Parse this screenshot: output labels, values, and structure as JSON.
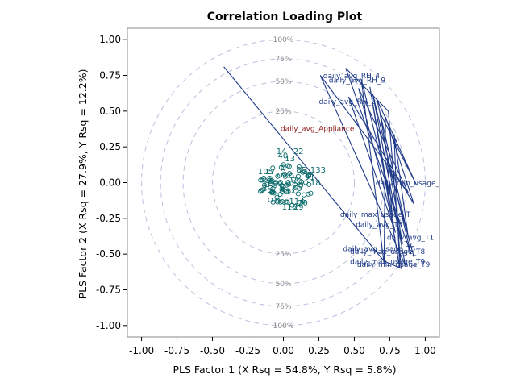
{
  "chart_data": {
    "type": "scatter",
    "title": "Correlation Loading Plot",
    "xlabel": "PLS Factor 1 (X Rsq = 54.8%, Y Rsq = 5.8%)",
    "ylabel": "PLS Factor 2 (X Rsq = 27.9%, Y Rsq = 12.2%)",
    "xlim": [
      -1.1,
      1.1
    ],
    "ylim": [
      -1.08,
      1.08
    ],
    "xticks": [
      "-1.00",
      "-0.75",
      "-0.50",
      "-0.25",
      "0.00",
      "0.25",
      "0.50",
      "0.75",
      "1.00"
    ],
    "yticks": [
      "1.00",
      "0.75",
      "0.50",
      "0.25",
      "0.00",
      "-0.25",
      "-0.50",
      "-0.75",
      "-1.00"
    ],
    "circles": [
      {
        "label": "100%",
        "radius": 1.0
      },
      {
        "label": "75%",
        "radius": 0.866
      },
      {
        "label": "50%",
        "radius": 0.7071
      },
      {
        "label": "25%",
        "radius": 0.5
      }
    ],
    "response": {
      "label": "daily_avg_Appliance",
      "x": -0.02,
      "y": 0.36
    },
    "predictor_path": [
      [
        -0.42,
        0.81
      ],
      [
        0.71,
        -0.55
      ],
      [
        0.83,
        -0.6
      ],
      [
        0.74,
        0.5
      ],
      [
        0.44,
        0.8
      ],
      [
        0.9,
        -0.5
      ],
      [
        0.63,
        0.62
      ],
      [
        0.86,
        -0.58
      ],
      [
        0.26,
        0.75
      ],
      [
        0.88,
        -0.07
      ],
      [
        0.53,
        0.66
      ],
      [
        0.79,
        -0.35
      ],
      [
        0.46,
        0.6
      ],
      [
        0.92,
        -0.15
      ],
      [
        0.72,
        0.46
      ],
      [
        0.71,
        -0.57
      ],
      [
        0.55,
        0.72
      ],
      [
        0.84,
        -0.43
      ],
      [
        0.68,
        0.49
      ],
      [
        0.94,
        -0.02
      ],
      [
        0.66,
        0.58
      ],
      [
        0.88,
        -0.38
      ],
      [
        0.78,
        0.34
      ],
      [
        0.82,
        -0.6
      ],
      [
        0.61,
        0.67
      ],
      [
        0.77,
        -0.25
      ],
      [
        0.73,
        0.17
      ],
      [
        0.92,
        -0.52
      ]
    ],
    "predictor_labels": [
      {
        "text": "daily_avg_RH_4",
        "x": 0.28,
        "y": 0.73
      },
      {
        "text": "daily_avg_RH_9",
        "x": 0.32,
        "y": 0.7
      },
      {
        "text": "daily_avg_RH_2",
        "x": 0.25,
        "y": 0.55
      },
      {
        "text": "daily_min_usage_",
        "x": 0.65,
        "y": -0.02
      },
      {
        "text": "daily_max_usage_T",
        "x": 0.4,
        "y": -0.24
      },
      {
        "text": "daily_avg_T6",
        "x": 0.51,
        "y": -0.31
      },
      {
        "text": "daily_avg_T1",
        "x": 0.73,
        "y": -0.4
      },
      {
        "text": "daily_avg_usage_T5",
        "x": 0.42,
        "y": -0.48
      },
      {
        "text": "daily_max_usage_T8",
        "x": 0.47,
        "y": -0.5
      },
      {
        "text": "daily_max_usage_T9",
        "x": 0.47,
        "y": -0.57
      },
      {
        "text": "daily_min_usage_T9",
        "x": 0.52,
        "y": -0.59
      }
    ],
    "observation_labels": [
      {
        "text": "14",
        "x": -0.05,
        "y": 0.2
      },
      {
        "text": "22",
        "x": 0.07,
        "y": 0.2
      },
      {
        "text": "40",
        "x": -0.04,
        "y": 0.17
      },
      {
        "text": "13",
        "x": 0.01,
        "y": 0.15
      },
      {
        "text": "85",
        "x": 0.09,
        "y": 0.07
      },
      {
        "text": "133",
        "x": 0.19,
        "y": 0.07
      },
      {
        "text": "105",
        "x": -0.18,
        "y": 0.06
      },
      {
        "text": "17",
        "x": -0.13,
        "y": 0.06
      },
      {
        "text": "91",
        "x": 0.15,
        "y": 0.02
      },
      {
        "text": "18",
        "x": 0.19,
        "y": -0.02
      },
      {
        "text": "25",
        "x": 0.07,
        "y": -0.04
      },
      {
        "text": "3",
        "x": -0.15,
        "y": -0.06
      },
      {
        "text": "51",
        "x": -0.02,
        "y": -0.08
      },
      {
        "text": "114",
        "x": 0.04,
        "y": -0.15
      },
      {
        "text": "20",
        "x": 0.1,
        "y": -0.16
      },
      {
        "text": "118",
        "x": -0.01,
        "y": -0.19
      },
      {
        "text": "29",
        "x": 0.07,
        "y": -0.19
      }
    ]
  }
}
